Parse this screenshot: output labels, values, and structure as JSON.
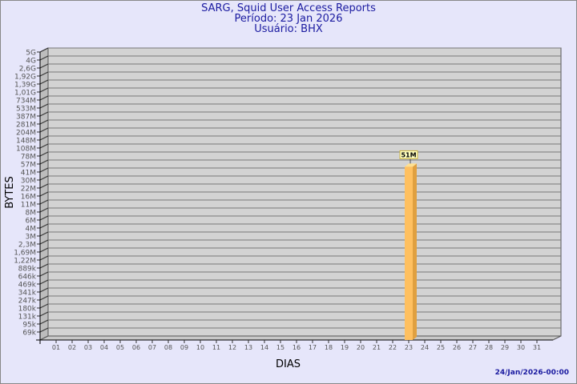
{
  "chart_data": {
    "type": "bar",
    "title": "SARG, Squid User Access Reports",
    "subtitle": [
      "Período: 23 Jan 2026",
      "Usuário: BHX"
    ],
    "xlabel": "DIAS",
    "ylabel": "BYTES",
    "yscale": "log",
    "ytick_labels": [
      "5G",
      "4G",
      "2,6G",
      "1,92G",
      "1,39G",
      "1,01G",
      "734M",
      "533M",
      "387M",
      "281M",
      "204M",
      "148M",
      "108M",
      "78M",
      "57M",
      "41M",
      "30M",
      "22M",
      "16M",
      "11M",
      "8M",
      "6M",
      "4M",
      "3M",
      "2,3M",
      "1,69M",
      "1,22M",
      "889k",
      "646k",
      "469k",
      "341k",
      "247k",
      "180k",
      "131k",
      "95k",
      "69k"
    ],
    "categories": [
      "01",
      "02",
      "03",
      "04",
      "05",
      "06",
      "07",
      "08",
      "09",
      "10",
      "11",
      "12",
      "13",
      "14",
      "15",
      "16",
      "17",
      "18",
      "19",
      "20",
      "21",
      "22",
      "23",
      "24",
      "25",
      "26",
      "27",
      "28",
      "29",
      "30",
      "31"
    ],
    "bars": [
      {
        "category": "23",
        "value_label": "51M",
        "value": 51000000
      }
    ],
    "grid": true,
    "colors": {
      "bar": "#ffc060",
      "wall": "#d3d3d3",
      "text": "#1a1aa0"
    }
  },
  "footer": {
    "timestamp": "24/Jan/2026-00:00"
  }
}
